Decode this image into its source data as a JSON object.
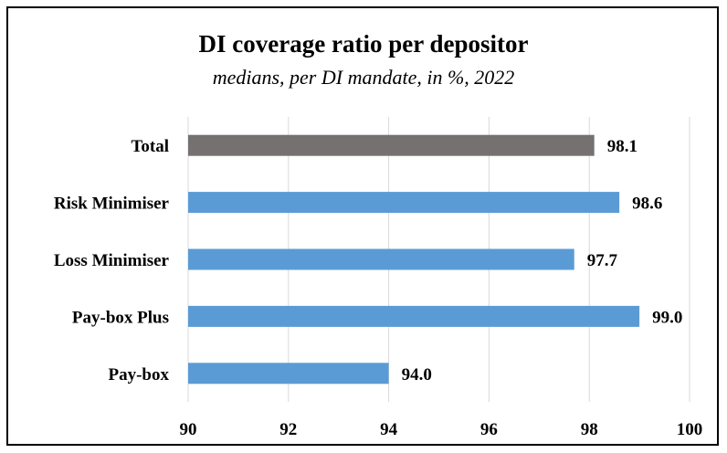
{
  "chart_data": {
    "type": "bar",
    "orientation": "horizontal",
    "title": "DI coverage ratio per depositor",
    "subtitle": "medians, per DI mandate, in %, 2022",
    "categories": [
      "Total",
      "Risk Minimiser",
      "Loss Minimiser",
      "Pay-box Plus",
      "Pay-box"
    ],
    "values": [
      98.1,
      98.6,
      97.7,
      99.0,
      94.0
    ],
    "value_labels": [
      "98.1",
      "98.6",
      "97.7",
      "99.0",
      "94.0"
    ],
    "bar_colors": [
      "#767171",
      "#5b9bd5",
      "#5b9bd5",
      "#5b9bd5",
      "#5b9bd5"
    ],
    "xlim": [
      90,
      100
    ],
    "xticks": [
      "90",
      "92",
      "94",
      "96",
      "98",
      "100"
    ],
    "grid": "vertical",
    "legend": "none"
  }
}
